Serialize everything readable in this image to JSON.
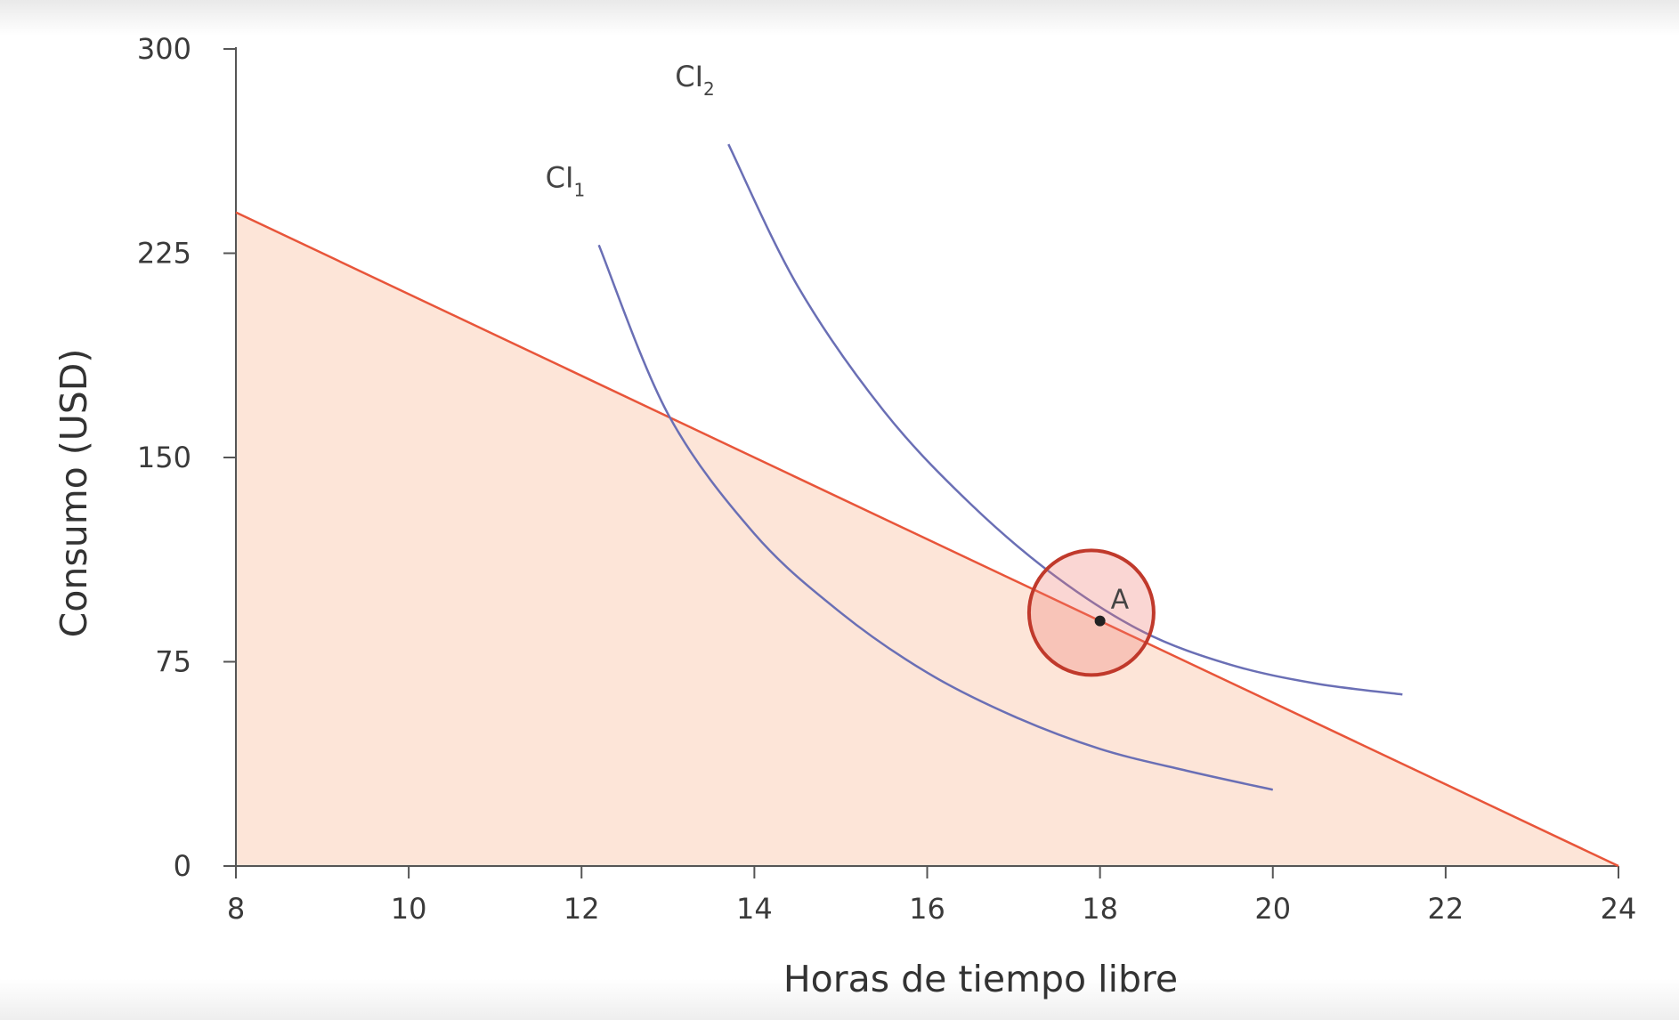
{
  "chart_data": {
    "type": "line",
    "title": "",
    "xlabel": "Horas de tiempo libre",
    "ylabel": "Consumo (USD)",
    "xlim": [
      8,
      24
    ],
    "ylim": [
      0,
      300
    ],
    "xticks": [
      8,
      10,
      12,
      14,
      16,
      18,
      20,
      22,
      24
    ],
    "yticks": [
      0,
      75,
      150,
      225,
      300
    ],
    "grid": false,
    "legend": "none",
    "budget_constraint": {
      "x": [
        8,
        24
      ],
      "y": [
        240,
        0
      ],
      "color": "#e8553a",
      "fill_color": "#fde5d8"
    },
    "indifference_curves": [
      {
        "label": "CI",
        "subscript": "1",
        "color": "#6a6fb5",
        "x": [
          12.2,
          13.0,
          14.0,
          15.0,
          16.0,
          17.0,
          18.0,
          19.0,
          20.0
        ],
        "y": [
          228,
          166,
          122,
          93,
          71,
          55,
          43,
          35,
          28
        ]
      },
      {
        "label": "CI",
        "subscript": "2",
        "color": "#6a6fb5",
        "x": [
          13.7,
          14.5,
          15.5,
          16.5,
          17.5,
          18.5,
          19.5,
          20.5,
          21.5
        ],
        "y": [
          265,
          213,
          167,
          133,
          106,
          86,
          74,
          67,
          63
        ]
      }
    ],
    "points": [
      {
        "label": "A",
        "x": 18,
        "y": 90
      }
    ],
    "highlight": {
      "x": 17.9,
      "y": 93,
      "color": "#c0392b"
    }
  }
}
